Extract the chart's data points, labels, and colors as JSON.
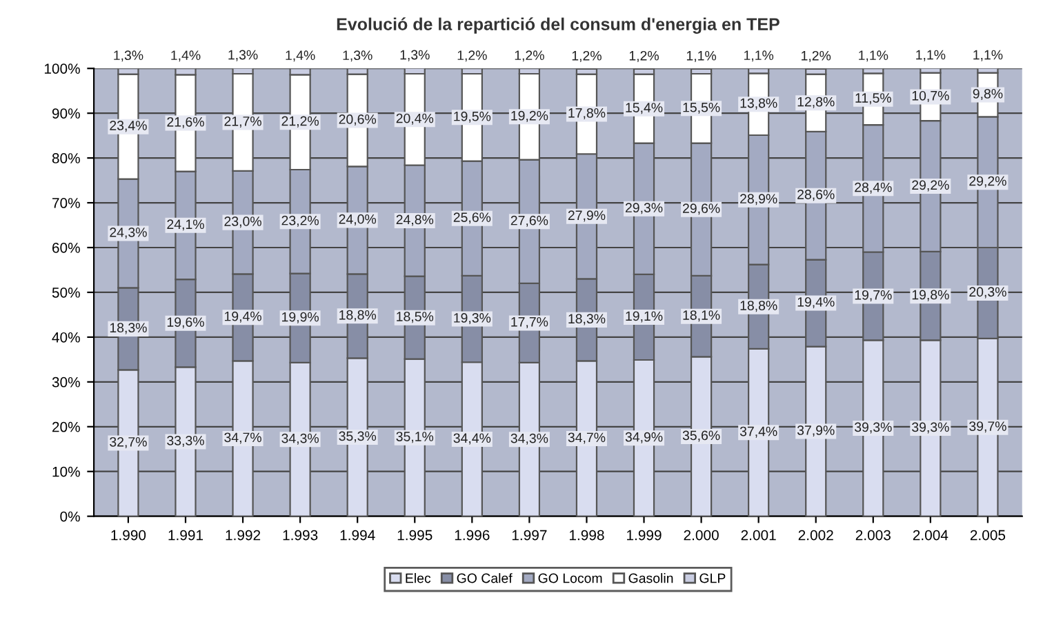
{
  "chart_data": {
    "type": "bar",
    "title": "Evolució de la repartició del consum d'energia en TEP",
    "stacked": true,
    "categories": [
      "1.990",
      "1.991",
      "1.992",
      "1.993",
      "1.994",
      "1.995",
      "1.996",
      "1.997",
      "1.998",
      "1.999",
      "2.000",
      "2.001",
      "2.002",
      "2.003",
      "2.004",
      "2.005"
    ],
    "series": [
      {
        "name": "Elec",
        "color": "#d9ddf0",
        "values": [
          32.7,
          33.3,
          34.7,
          34.3,
          35.3,
          35.1,
          34.4,
          34.3,
          34.7,
          34.9,
          35.6,
          37.4,
          37.9,
          39.3,
          39.3,
          39.7
        ],
        "value_labels": [
          "32,7%",
          "33,3%",
          "34,7%",
          "34,3%",
          "35,3%",
          "35,1%",
          "34,4%",
          "34,3%",
          "34,7%",
          "34,9%",
          "35,6%",
          "37,4%",
          "37,9%",
          "39,3%",
          "39,3%",
          "39,7%"
        ]
      },
      {
        "name": "GO Calef",
        "color": "#878ea6",
        "values": [
          18.3,
          19.6,
          19.4,
          19.9,
          18.8,
          18.5,
          19.3,
          17.7,
          18.3,
          19.1,
          18.1,
          18.8,
          19.4,
          19.7,
          19.8,
          20.3
        ],
        "value_labels": [
          "18,3%",
          "19,6%",
          "19,4%",
          "19,9%",
          "18,8%",
          "18,5%",
          "19,3%",
          "17,7%",
          "18,3%",
          "19,1%",
          "18,1%",
          "18,8%",
          "19,4%",
          "19,7%",
          "19,8%",
          "20,3%"
        ]
      },
      {
        "name": "GO Locom",
        "color": "#a3aac2",
        "values": [
          24.3,
          24.1,
          23.0,
          23.2,
          24.0,
          24.8,
          25.6,
          27.6,
          27.9,
          29.3,
          29.6,
          28.9,
          28.6,
          28.4,
          29.2,
          29.2
        ],
        "value_labels": [
          "24,3%",
          "24,1%",
          "23,0%",
          "23,2%",
          "24,0%",
          "24,8%",
          "25,6%",
          "27,6%",
          "27,9%",
          "29,3%",
          "29,6%",
          "28,9%",
          "28,6%",
          "28,4%",
          "29,2%",
          "29,2%"
        ]
      },
      {
        "name": "Gasolin",
        "color": "#ffffff",
        "values": [
          23.4,
          21.6,
          21.7,
          21.2,
          20.6,
          20.4,
          19.5,
          19.2,
          17.8,
          15.4,
          15.5,
          13.8,
          12.8,
          11.5,
          10.7,
          9.8
        ],
        "value_labels": [
          "23,4%",
          "21,6%",
          "21,7%",
          "21,2%",
          "20,6%",
          "20,4%",
          "19,5%",
          "19,2%",
          "17,8%",
          "15,4%",
          "15,5%",
          "13,8%",
          "12,8%",
          "11,5%",
          "10,7%",
          "9,8%"
        ]
      },
      {
        "name": "GLP",
        "color": "#c9cde2",
        "values": [
          1.3,
          1.4,
          1.3,
          1.4,
          1.3,
          1.3,
          1.2,
          1.2,
          1.2,
          1.2,
          1.1,
          1.1,
          1.2,
          1.1,
          1.1,
          1.1
        ],
        "value_labels": [
          "1,3%",
          "1,4%",
          "1,3%",
          "1,4%",
          "1,3%",
          "1,3%",
          "1,2%",
          "1,2%",
          "1,2%",
          "1,2%",
          "1,1%",
          "1,1%",
          "1,2%",
          "1,1%",
          "1,1%",
          "1,1%"
        ]
      }
    ],
    "ylim": [
      0,
      100
    ],
    "yticks": [
      {
        "value": 0,
        "label": "0%"
      },
      {
        "value": 10,
        "label": "10%"
      },
      {
        "value": 20,
        "label": "20%"
      },
      {
        "value": 30,
        "label": "30%"
      },
      {
        "value": 40,
        "label": "40%"
      },
      {
        "value": 50,
        "label": "50%"
      },
      {
        "value": 60,
        "label": "60%"
      },
      {
        "value": 70,
        "label": "70%"
      },
      {
        "value": 80,
        "label": "80%"
      },
      {
        "value": 90,
        "label": "90%"
      },
      {
        "value": 100,
        "label": "100%"
      }
    ],
    "grid": "y",
    "legend": "bottom"
  }
}
